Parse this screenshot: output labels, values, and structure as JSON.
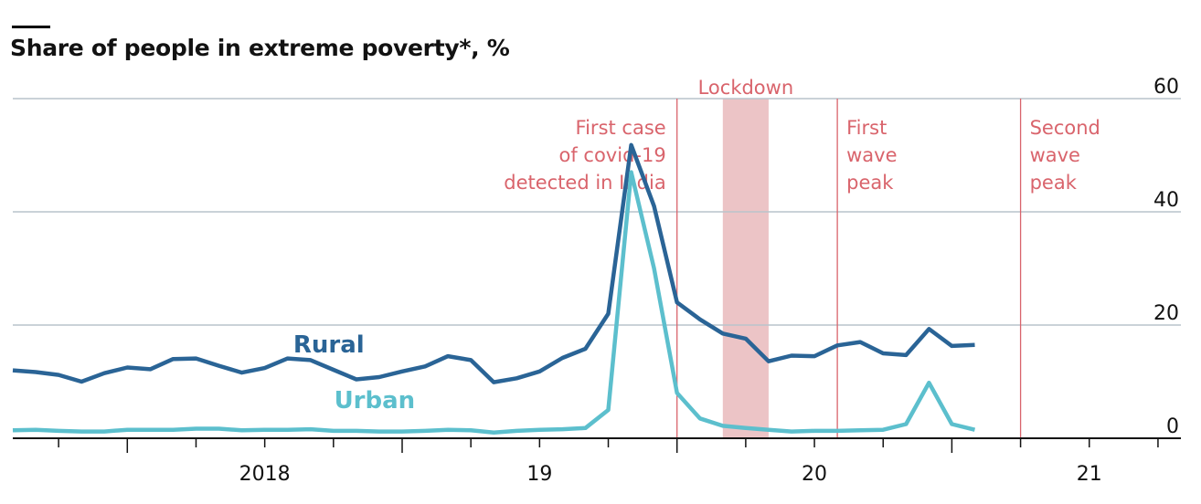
{
  "title": "Share of people in extreme poverty*, %",
  "colors": {
    "rural": "#2a6496",
    "urban": "#5cbfcd",
    "annotation": "#d9646c",
    "lockdown_band": "#ecc4c6",
    "grid": "#b9c4cc"
  },
  "chart_data": {
    "type": "line",
    "title": "Share of people in extreme poverty*, %",
    "xlabel": "",
    "ylabel": "",
    "ylim": [
      0,
      60
    ],
    "yticks": [
      0,
      20,
      40,
      60
    ],
    "y_axis_side": "right",
    "x_range": [
      "2017-08",
      "2021-11"
    ],
    "x_tick_labels": [
      {
        "label": "2018",
        "at": "2018-07"
      },
      {
        "label": "19",
        "at": "2019-07"
      },
      {
        "label": "20",
        "at": "2020-07"
      },
      {
        "label": "21",
        "at": "2021-07"
      }
    ],
    "grid": true,
    "x": [
      "2017-08",
      "2017-09",
      "2017-10",
      "2017-11",
      "2017-12",
      "2018-01",
      "2018-02",
      "2018-03",
      "2018-04",
      "2018-05",
      "2018-06",
      "2018-07",
      "2018-08",
      "2018-09",
      "2018-10",
      "2018-11",
      "2018-12",
      "2019-01",
      "2019-02",
      "2019-03",
      "2019-04",
      "2019-05",
      "2019-06",
      "2019-07",
      "2019-08",
      "2019-09",
      "2019-10",
      "2019-11",
      "2019-12",
      "2020-01",
      "2020-02",
      "2020-03",
      "2020-04",
      "2020-05",
      "2020-06",
      "2020-07",
      "2020-08",
      "2020-09",
      "2020-10",
      "2020-11",
      "2020-12",
      "2021-01",
      "2021-02",
      "2021-03",
      "2021-04",
      "2021-05",
      "2021-06",
      "2021-07",
      "2021-08"
    ],
    "series": [
      {
        "name": "Rural",
        "values": [
          12.0,
          11.7,
          11.2,
          10.0,
          11.5,
          12.5,
          12.2,
          14.0,
          14.1,
          12.8,
          11.6,
          12.4,
          14.1,
          13.8,
          12.1,
          10.4,
          10.8,
          11.8,
          12.7,
          14.5,
          13.8,
          9.9,
          10.6,
          11.8,
          14.2,
          15.8,
          22.0,
          51.8,
          41.0,
          24.0,
          21.0,
          18.5,
          17.6,
          13.6,
          14.6,
          14.5,
          16.4,
          17.0,
          15.0,
          14.7,
          19.3,
          16.3,
          16.5,
          null,
          null,
          null,
          null,
          null,
          null
        ]
      },
      {
        "name": "Urban",
        "values": [
          1.4,
          1.5,
          1.3,
          1.2,
          1.2,
          1.5,
          1.5,
          1.5,
          1.7,
          1.7,
          1.4,
          1.5,
          1.5,
          1.6,
          1.3,
          1.3,
          1.2,
          1.2,
          1.3,
          1.5,
          1.4,
          1.0,
          1.3,
          1.5,
          1.6,
          1.8,
          5.0,
          47.0,
          30.0,
          8.0,
          3.5,
          2.2,
          1.8,
          1.5,
          1.2,
          1.3,
          1.3,
          1.4,
          1.5,
          2.5,
          9.8,
          2.5,
          1.5,
          null,
          null,
          null,
          null,
          null,
          null
        ]
      }
    ],
    "annotations": [
      {
        "type": "line",
        "at": "2020-01",
        "text": [
          "First case",
          "of covid-19",
          "detected in India"
        ],
        "align": "left"
      },
      {
        "type": "band",
        "from": "2020-03",
        "to": "2020-05",
        "text": [
          "Lockdown"
        ],
        "align": "center"
      },
      {
        "type": "line",
        "at": "2020-08",
        "text": [
          "First",
          "wave",
          "peak"
        ],
        "align": "right"
      },
      {
        "type": "line",
        "at": "2021-04",
        "text": [
          "Second",
          "wave",
          "peak"
        ],
        "align": "right"
      }
    ]
  }
}
